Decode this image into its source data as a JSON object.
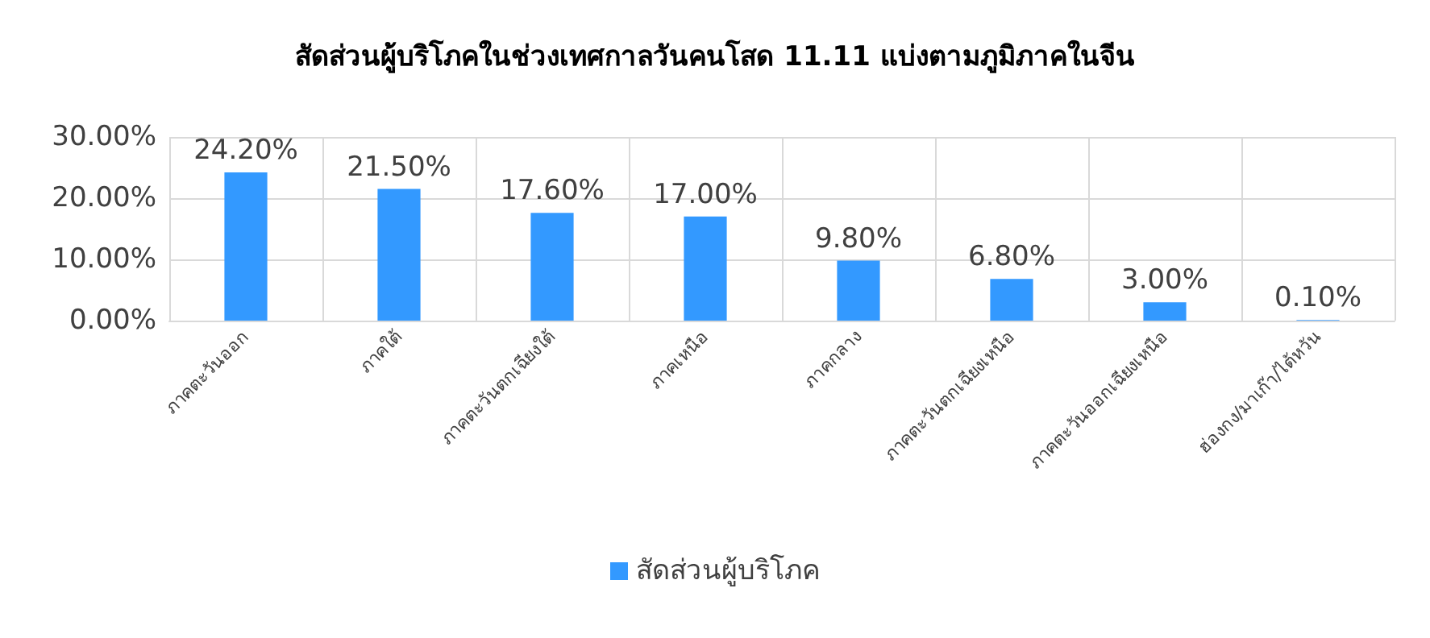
{
  "chart_data": {
    "type": "bar",
    "title": "สัดส่วนผู้บริโภคในช่วงเทศกาลวันคนโสด 11.11 แบ่งตามภูมิภาคในจีน",
    "categories": [
      "ภาคตะวันออก",
      "ภาคใต้",
      "ภาคตะวันตกเฉียงใต้",
      "ภาคเหนือ",
      "ภาคกลาง",
      "ภาคตะวันตกเฉียงเหนือ",
      "ภาคตะวันออกเฉียงเหนือ",
      "ฮ่องกง/มาเก๊า/ไต้หวัน"
    ],
    "series": [
      {
        "name": "สัดส่วนผู้บริโภค",
        "color": "#3399ff",
        "values": [
          24.2,
          21.5,
          17.6,
          17.0,
          9.8,
          6.8,
          3.0,
          0.1
        ],
        "value_labels": [
          "24.20%",
          "21.50%",
          "17.60%",
          "17.00%",
          "9.80%",
          "6.80%",
          "3.00%",
          "0.10%"
        ]
      }
    ],
    "ylim": [
      0,
      30
    ],
    "yticks": [
      {
        "value": 0,
        "label": "0.00%"
      },
      {
        "value": 10,
        "label": "10.00%"
      },
      {
        "value": 20,
        "label": "20.00%"
      },
      {
        "value": 30,
        "label": "30.00%"
      }
    ],
    "grid": true,
    "legend": "bottom"
  }
}
